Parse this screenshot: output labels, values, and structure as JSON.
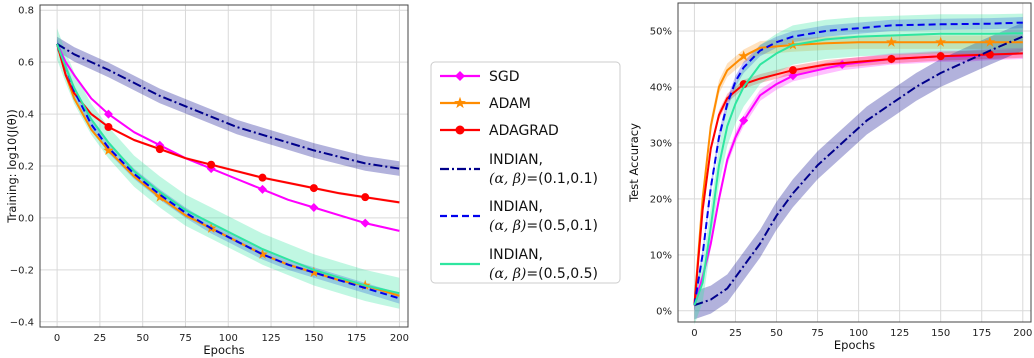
{
  "chart_data": [
    {
      "type": "line",
      "xlabel": "Epochs",
      "ylabel": "Training: log10(J(θ))",
      "xlim": [
        -10,
        205
      ],
      "ylim": [
        -0.42,
        0.82
      ],
      "xticks": [
        0,
        25,
        50,
        75,
        100,
        125,
        150,
        175,
        200
      ],
      "yticks": [
        -0.4,
        -0.2,
        0.0,
        0.2,
        0.4,
        0.6,
        0.8
      ],
      "ytick_labels": [
        "−0.4",
        "−0.2",
        "0.0",
        "0.2",
        "0.4",
        "0.6",
        "0.8"
      ],
      "grid": true,
      "series": [
        {
          "name": "SGD",
          "color": "#ff00ff",
          "marker": "diamond",
          "x": [
            0,
            5,
            10,
            20,
            30,
            45,
            60,
            75,
            90,
            105,
            120,
            135,
            150,
            165,
            180,
            200
          ],
          "y": [
            0.67,
            0.6,
            0.55,
            0.46,
            0.4,
            0.33,
            0.28,
            0.23,
            0.19,
            0.15,
            0.11,
            0.07,
            0.04,
            0.01,
            -0.02,
            -0.05
          ],
          "band": 0.004
        },
        {
          "name": "ADAM",
          "color": "#ff8c00",
          "marker": "star",
          "x": [
            0,
            5,
            10,
            20,
            30,
            45,
            60,
            75,
            90,
            105,
            120,
            135,
            150,
            165,
            180,
            200
          ],
          "y": [
            0.67,
            0.55,
            0.46,
            0.34,
            0.26,
            0.16,
            0.08,
            0.01,
            -0.04,
            -0.09,
            -0.14,
            -0.18,
            -0.21,
            -0.24,
            -0.26,
            -0.3
          ],
          "band": 0.006
        },
        {
          "name": "ADAGRAD",
          "color": "#ff0000",
          "marker": "circle",
          "x": [
            0,
            5,
            10,
            20,
            30,
            45,
            60,
            75,
            90,
            105,
            120,
            135,
            150,
            165,
            180,
            200
          ],
          "y": [
            0.67,
            0.55,
            0.48,
            0.4,
            0.35,
            0.3,
            0.265,
            0.23,
            0.205,
            0.18,
            0.155,
            0.135,
            0.115,
            0.095,
            0.08,
            0.06
          ],
          "band": 0.005
        },
        {
          "name": "INDIAN, (α,β)=(0.1,0.1)",
          "color": "#00008b",
          "dash": "9,3,2,3",
          "x": [
            0,
            10,
            20,
            30,
            45,
            60,
            75,
            90,
            105,
            120,
            135,
            150,
            165,
            180,
            200
          ],
          "y": [
            0.67,
            0.63,
            0.6,
            0.57,
            0.52,
            0.47,
            0.43,
            0.39,
            0.35,
            0.32,
            0.29,
            0.26,
            0.235,
            0.21,
            0.19
          ],
          "band": 0.028
        },
        {
          "name": "INDIAN, (α,β)=(0.5,0.1)",
          "color": "#0000ee",
          "dash": "7,4",
          "x": [
            0,
            5,
            10,
            20,
            30,
            45,
            60,
            75,
            90,
            105,
            120,
            135,
            150,
            165,
            180,
            200
          ],
          "y": [
            0.67,
            0.58,
            0.49,
            0.36,
            0.27,
            0.17,
            0.09,
            0.02,
            -0.04,
            -0.09,
            -0.14,
            -0.18,
            -0.21,
            -0.24,
            -0.27,
            -0.31
          ],
          "band": 0.02
        },
        {
          "name": "INDIAN, (α,β)=(0.5,0.5)",
          "color": "#2fe6a0",
          "x": [
            0,
            5,
            10,
            20,
            30,
            45,
            60,
            75,
            90,
            105,
            120,
            135,
            150,
            165,
            180,
            200
          ],
          "y": [
            0.67,
            0.58,
            0.5,
            0.38,
            0.29,
            0.18,
            0.1,
            0.03,
            -0.02,
            -0.07,
            -0.12,
            -0.16,
            -0.2,
            -0.23,
            -0.26,
            -0.29
          ],
          "band": 0.06
        }
      ]
    },
    {
      "type": "line",
      "xlabel": "Epochs",
      "ylabel": "Test Accuracy",
      "xlim": [
        -10,
        205
      ],
      "ylim": [
        -0.02,
        0.55
      ],
      "xticks": [
        0,
        25,
        50,
        75,
        100,
        125,
        150,
        175,
        200
      ],
      "yticks": [
        0.0,
        0.1,
        0.2,
        0.3,
        0.4,
        0.5
      ],
      "ytick_labels": [
        "0%",
        "10%",
        "20%",
        "30%",
        "40%",
        "50%"
      ],
      "grid": true,
      "series": [
        {
          "name": "SGD",
          "color": "#ff00ff",
          "marker": "diamond",
          "x": [
            0,
            5,
            10,
            15,
            20,
            25,
            30,
            40,
            50,
            60,
            75,
            90,
            105,
            120,
            135,
            150,
            165,
            180,
            200
          ],
          "y": [
            0.01,
            0.06,
            0.12,
            0.2,
            0.27,
            0.31,
            0.34,
            0.385,
            0.405,
            0.42,
            0.43,
            0.44,
            0.445,
            0.45,
            0.452,
            0.455,
            0.455,
            0.458,
            0.46
          ],
          "band": 0.01
        },
        {
          "name": "ADAM",
          "color": "#ff8c00",
          "marker": "star",
          "x": [
            0,
            5,
            10,
            15,
            20,
            30,
            40,
            60,
            80,
            100,
            120,
            150,
            180,
            200
          ],
          "y": [
            0.01,
            0.2,
            0.33,
            0.4,
            0.43,
            0.455,
            0.47,
            0.475,
            0.478,
            0.48,
            0.48,
            0.48,
            0.48,
            0.48
          ],
          "band": 0.012
        },
        {
          "name": "ADAGRAD",
          "color": "#ff0000",
          "marker": "circle",
          "x": [
            0,
            5,
            10,
            15,
            20,
            30,
            40,
            60,
            80,
            100,
            120,
            150,
            180,
            200
          ],
          "y": [
            0.01,
            0.18,
            0.29,
            0.35,
            0.38,
            0.405,
            0.415,
            0.43,
            0.44,
            0.445,
            0.45,
            0.455,
            0.458,
            0.46
          ],
          "band": 0.008
        },
        {
          "name": "INDIAN, (α,β)=(0.1,0.1)",
          "color": "#00008b",
          "dash": "9,3,2,3",
          "x": [
            0,
            10,
            20,
            30,
            40,
            50,
            60,
            75,
            90,
            105,
            120,
            135,
            150,
            165,
            180,
            200
          ],
          "y": [
            0.01,
            0.02,
            0.04,
            0.08,
            0.12,
            0.17,
            0.21,
            0.26,
            0.3,
            0.34,
            0.37,
            0.4,
            0.425,
            0.445,
            0.465,
            0.49
          ],
          "band": 0.025
        },
        {
          "name": "INDIAN, (α,β)=(0.5,0.1)",
          "color": "#0000ee",
          "dash": "7,4",
          "x": [
            0,
            5,
            10,
            15,
            20,
            25,
            30,
            40,
            50,
            60,
            80,
            100,
            120,
            150,
            180,
            200
          ],
          "y": [
            0.01,
            0.1,
            0.22,
            0.31,
            0.37,
            0.41,
            0.435,
            0.465,
            0.48,
            0.49,
            0.5,
            0.505,
            0.51,
            0.512,
            0.513,
            0.515
          ],
          "band": 0.01
        },
        {
          "name": "INDIAN, (α,β)=(0.5,0.5)",
          "color": "#2fe6a0",
          "x": [
            0,
            5,
            10,
            15,
            20,
            25,
            30,
            40,
            50,
            60,
            80,
            100,
            120,
            150,
            180,
            200
          ],
          "y": [
            0.01,
            0.05,
            0.15,
            0.26,
            0.33,
            0.37,
            0.4,
            0.44,
            0.46,
            0.475,
            0.485,
            0.49,
            0.492,
            0.495,
            0.495,
            0.496
          ],
          "band": 0.035
        }
      ]
    }
  ],
  "legend": {
    "entries": [
      {
        "line1": "SGD",
        "line2": ""
      },
      {
        "line1": "ADAM",
        "line2": ""
      },
      {
        "line1": "ADAGRAD",
        "line2": ""
      },
      {
        "line1": "INDIAN,",
        "line2": "=(0.1,0.1)"
      },
      {
        "line1": "INDIAN,",
        "line2": "=(0.5,0.1)"
      },
      {
        "line1": "INDIAN,",
        "line2": "=(0.5,0.5)"
      }
    ],
    "math_prefix": "(α, β)"
  }
}
